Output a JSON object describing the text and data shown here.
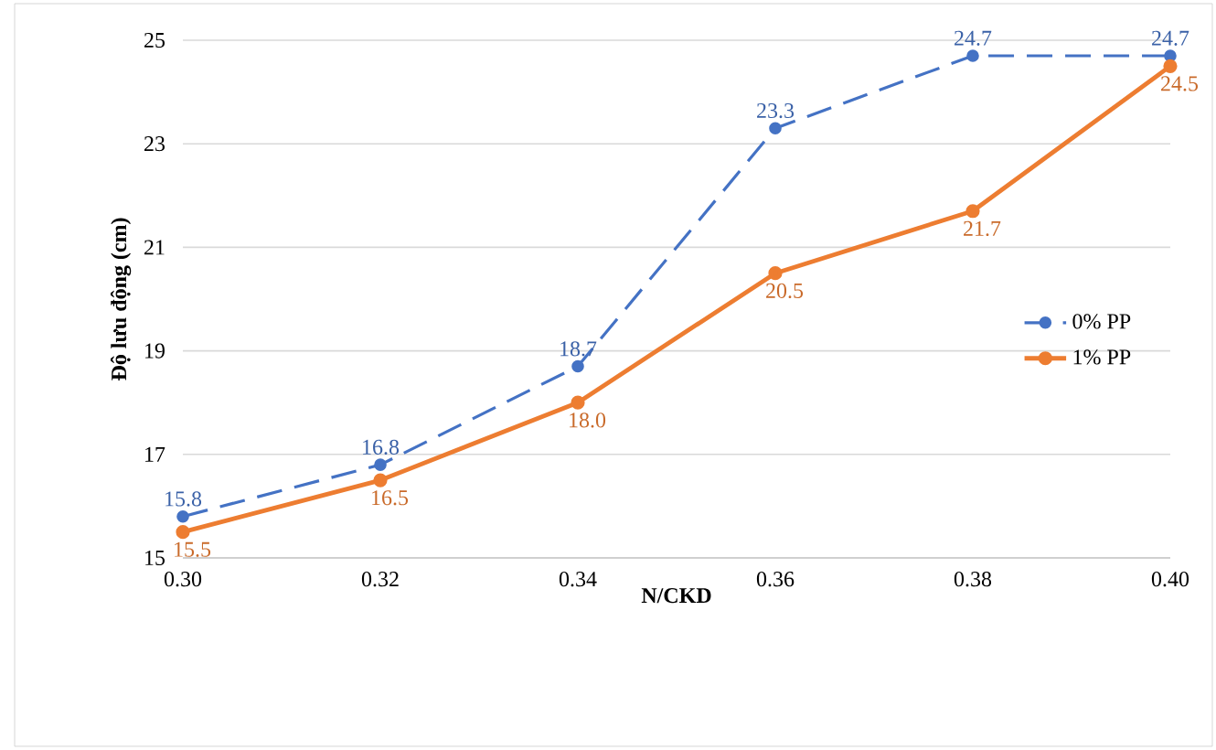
{
  "chart_data": {
    "type": "line",
    "xlabel": "N/CKD",
    "ylabel": "Độ lưu động (cm)",
    "x": [
      0.3,
      0.32,
      0.34,
      0.36,
      0.38,
      0.4
    ],
    "series": [
      {
        "name": "0% PP",
        "color": "#4472c4",
        "line_style": "dashed",
        "values": [
          15.8,
          16.8,
          18.7,
          23.3,
          24.7,
          24.7
        ],
        "value_labels": [
          "15.8",
          "16.8",
          "18.7",
          "23.3",
          "24.7",
          "24.7"
        ]
      },
      {
        "name": "1% PP",
        "color": "#ed7d31",
        "line_style": "solid",
        "values": [
          15.5,
          16.5,
          18.0,
          20.5,
          21.7,
          24.5
        ],
        "value_labels": [
          "15.5",
          "16.5",
          "18.0",
          "20.5",
          "21.7",
          "24.5"
        ]
      }
    ],
    "xlim": [
      0.3,
      0.4
    ],
    "xticks": [
      {
        "value": 0.3,
        "label": "0.30"
      },
      {
        "value": 0.32,
        "label": "0.32"
      },
      {
        "value": 0.34,
        "label": "0.34"
      },
      {
        "value": 0.36,
        "label": "0.36"
      },
      {
        "value": 0.38,
        "label": "0.38"
      },
      {
        "value": 0.4,
        "label": "0.40"
      }
    ],
    "ylim": [
      15,
      25
    ],
    "yticks": [
      15,
      17,
      19,
      21,
      23,
      25
    ],
    "grid": "y",
    "legend": "right",
    "marker": "circle"
  }
}
